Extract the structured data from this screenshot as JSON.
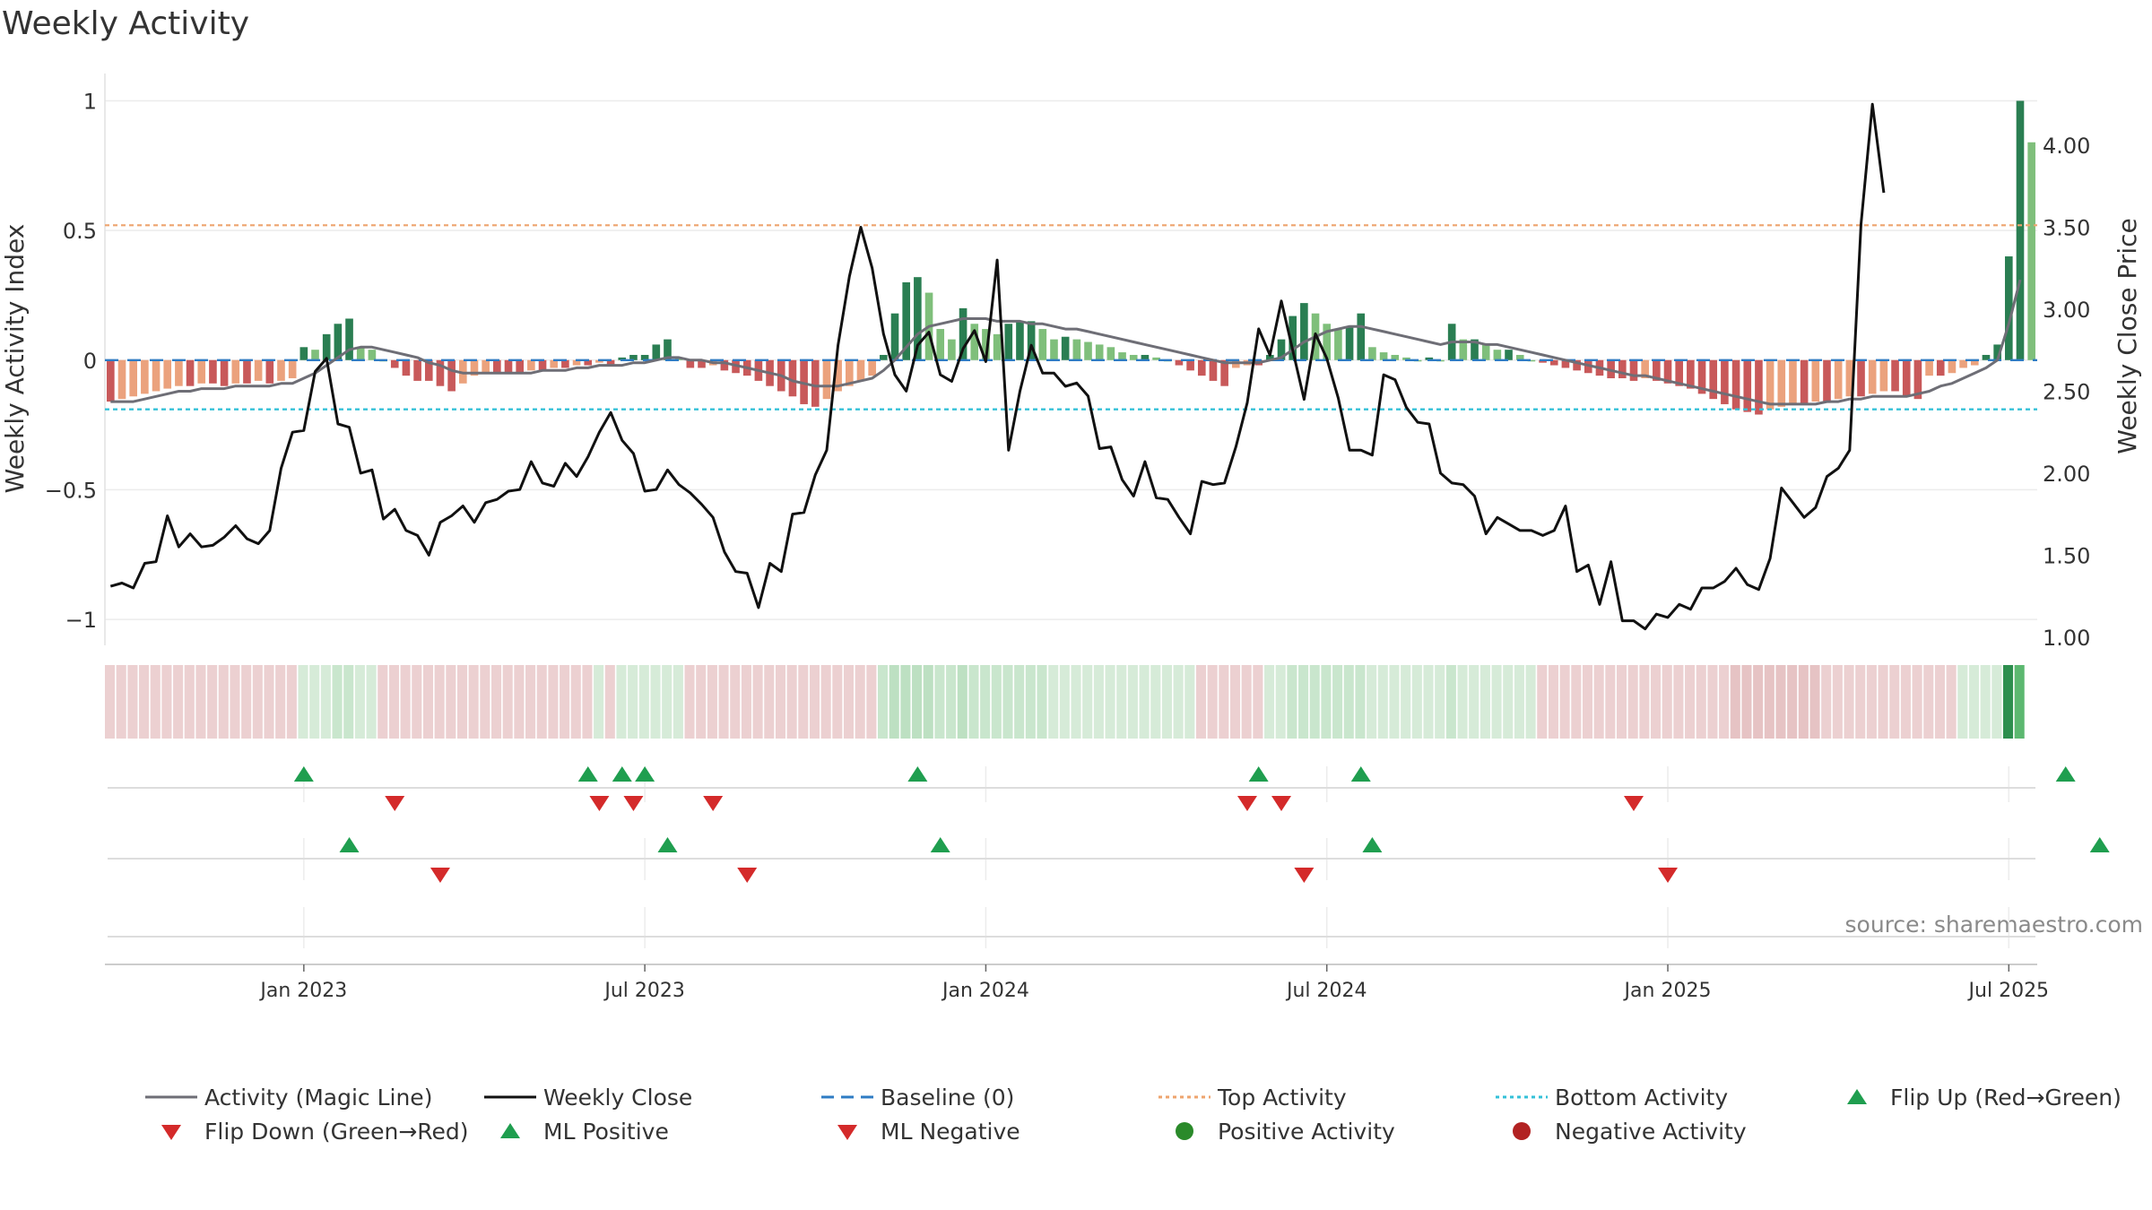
{
  "title": "Weekly Activity",
  "source": "source: sharemaestro.com",
  "colors": {
    "pos_dark": "#2a7e52",
    "pos_light": "#7fbf7b",
    "neg_dark": "#c8595a",
    "neg_light": "#eba27d",
    "magic": "#6e6e76",
    "close": "#111111",
    "baseline": "#2f7cc4",
    "top": "#eea46e",
    "bottom": "#34c1d8",
    "up": "#1f9e4f",
    "down": "#d42a2a",
    "pos_dot": "#2a8a2a",
    "neg_dot": "#b22222"
  },
  "chart_data": {
    "type": "bar",
    "title": "Weekly Activity",
    "ylabel": "Weekly Activity Index",
    "y2label": "Weekly Close Price",
    "ylim": [
      -1.1,
      1.05
    ],
    "y2lim": [
      0.95,
      4.35
    ],
    "yticks": [
      1,
      0.5,
      0,
      -0.5,
      -1
    ],
    "ytick_labels": [
      "1",
      "0.5",
      "0",
      "−0.5",
      "−1"
    ],
    "y2ticks": [
      4.0,
      3.5,
      3.0,
      2.5,
      2.0,
      1.5,
      1.0
    ],
    "y2tick_labels": [
      "4.00",
      "3.50",
      "3.00",
      "2.50",
      "2.00",
      "1.50",
      "1.00"
    ],
    "xticks": [
      17,
      47,
      77,
      107,
      137,
      167
    ],
    "xtick_labels": [
      "Jan 2023",
      "Jul 2023",
      "Jan 2024",
      "Jul 2024",
      "Jan 2025",
      "Jul 2025"
    ],
    "top_activity": 0.52,
    "bottom_activity": -0.19,
    "baseline": 0,
    "activity": [
      -0.16,
      -0.15,
      -0.14,
      -0.13,
      -0.12,
      -0.11,
      -0.1,
      -0.1,
      -0.09,
      -0.09,
      -0.1,
      -0.09,
      -0.09,
      -0.08,
      -0.09,
      -0.08,
      -0.07,
      0.05,
      0.04,
      0.1,
      0.14,
      0.16,
      0.05,
      0.04,
      0,
      -0.03,
      -0.06,
      -0.08,
      -0.08,
      -0.1,
      -0.12,
      -0.09,
      -0.06,
      -0.05,
      -0.05,
      -0.05,
      -0.05,
      -0.04,
      -0.04,
      -0.03,
      -0.03,
      -0.02,
      -0.02,
      -0.01,
      -0.02,
      0.01,
      0.02,
      0.02,
      0.06,
      0.08,
      0.01,
      -0.03,
      -0.03,
      -0.02,
      -0.04,
      -0.05,
      -0.06,
      -0.08,
      -0.1,
      -0.12,
      -0.14,
      -0.17,
      -0.18,
      -0.15,
      -0.12,
      -0.1,
      -0.08,
      -0.06,
      0.02,
      0.18,
      0.3,
      0.32,
      0.26,
      0.12,
      0.08,
      0.2,
      0.14,
      0.12,
      0.1,
      0.14,
      0.15,
      0.15,
      0.12,
      0.08,
      0.09,
      0.08,
      0.07,
      0.06,
      0.05,
      0.03,
      0.02,
      0.02,
      0.01,
      0,
      -0.02,
      -0.04,
      -0.06,
      -0.08,
      -0.1,
      -0.03,
      -0.02,
      -0.02,
      0.02,
      0.08,
      0.17,
      0.22,
      0.18,
      0.14,
      0.12,
      0.13,
      0.18,
      0.05,
      0.03,
      0.02,
      0.01,
      0,
      0.01,
      0,
      0.14,
      0.08,
      0.08,
      0.06,
      0.04,
      0.04,
      0.02,
      0,
      -0.01,
      -0.02,
      -0.03,
      -0.04,
      -0.05,
      -0.06,
      -0.07,
      -0.07,
      -0.08,
      -0.07,
      -0.08,
      -0.09,
      -0.1,
      -0.11,
      -0.13,
      -0.15,
      -0.17,
      -0.19,
      -0.2,
      -0.21,
      -0.19,
      -0.18,
      -0.17,
      -0.17,
      -0.16,
      -0.16,
      -0.15,
      -0.14,
      -0.14,
      -0.13,
      -0.12,
      -0.12,
      -0.14,
      -0.15,
      -0.06,
      -0.06,
      -0.05,
      -0.03,
      -0.02,
      0.02,
      0.06,
      0.4,
      1.0,
      0.84
    ],
    "magic_line": [
      -0.16,
      -0.16,
      -0.16,
      -0.15,
      -0.14,
      -0.13,
      -0.12,
      -0.12,
      -0.11,
      -0.11,
      -0.11,
      -0.1,
      -0.1,
      -0.1,
      -0.1,
      -0.09,
      -0.09,
      -0.07,
      -0.05,
      -0.02,
      0.01,
      0.04,
      0.05,
      0.05,
      0.04,
      0.03,
      0.02,
      0.01,
      -0.01,
      -0.02,
      -0.04,
      -0.05,
      -0.05,
      -0.05,
      -0.05,
      -0.05,
      -0.05,
      -0.05,
      -0.04,
      -0.04,
      -0.04,
      -0.03,
      -0.03,
      -0.02,
      -0.02,
      -0.02,
      -0.01,
      -0.01,
      0,
      0.01,
      0.01,
      0,
      0,
      -0.01,
      -0.01,
      -0.02,
      -0.03,
      -0.04,
      -0.05,
      -0.06,
      -0.08,
      -0.09,
      -0.1,
      -0.1,
      -0.1,
      -0.09,
      -0.08,
      -0.07,
      -0.04,
      0,
      0.05,
      0.1,
      0.13,
      0.14,
      0.15,
      0.16,
      0.16,
      0.16,
      0.15,
      0.15,
      0.15,
      0.14,
      0.14,
      0.13,
      0.12,
      0.12,
      0.11,
      0.1,
      0.09,
      0.08,
      0.07,
      0.06,
      0.05,
      0.04,
      0.03,
      0.02,
      0.01,
      0,
      -0.01,
      -0.01,
      -0.01,
      -0.01,
      0,
      0.01,
      0.04,
      0.07,
      0.09,
      0.11,
      0.12,
      0.13,
      0.13,
      0.12,
      0.11,
      0.1,
      0.09,
      0.08,
      0.07,
      0.06,
      0.07,
      0.07,
      0.07,
      0.06,
      0.06,
      0.05,
      0.04,
      0.03,
      0.02,
      0.01,
      0,
      -0.01,
      -0.02,
      -0.03,
      -0.04,
      -0.05,
      -0.06,
      -0.06,
      -0.07,
      -0.08,
      -0.09,
      -0.1,
      -0.11,
      -0.12,
      -0.13,
      -0.14,
      -0.15,
      -0.16,
      -0.17,
      -0.17,
      -0.17,
      -0.17,
      -0.17,
      -0.16,
      -0.16,
      -0.15,
      -0.15,
      -0.14,
      -0.14,
      -0.14,
      -0.14,
      -0.13,
      -0.12,
      -0.1,
      -0.09,
      -0.07,
      -0.05,
      -0.03,
      0,
      0.14,
      0.31
    ],
    "weekly_close": [
      1.31,
      1.33,
      1.3,
      1.45,
      1.46,
      1.74,
      1.55,
      1.63,
      1.55,
      1.56,
      1.61,
      1.68,
      1.6,
      1.57,
      1.65,
      2.03,
      2.25,
      2.26,
      2.62,
      2.7,
      2.3,
      2.28,
      2.0,
      2.02,
      1.72,
      1.78,
      1.65,
      1.62,
      1.5,
      1.7,
      1.74,
      1.8,
      1.7,
      1.82,
      1.84,
      1.89,
      1.9,
      2.07,
      1.94,
      1.92,
      2.06,
      1.98,
      2.1,
      2.25,
      2.37,
      2.2,
      2.12,
      1.89,
      1.9,
      2.02,
      1.93,
      1.88,
      1.81,
      1.73,
      1.52,
      1.4,
      1.39,
      1.18,
      1.45,
      1.4,
      1.75,
      1.76,
      1.99,
      2.14,
      2.78,
      3.2,
      3.5,
      3.25,
      2.85,
      2.6,
      2.5,
      2.78,
      2.86,
      2.6,
      2.56,
      2.76,
      2.87,
      2.68,
      3.3,
      2.14,
      2.5,
      2.78,
      2.61,
      2.61,
      2.53,
      2.55,
      2.47,
      2.15,
      2.16,
      1.96,
      1.86,
      2.07,
      1.85,
      1.84,
      1.73,
      1.63,
      1.95,
      1.93,
      1.94,
      2.16,
      2.43,
      2.88,
      2.72,
      3.05,
      2.75,
      2.45,
      2.85,
      2.7,
      2.46,
      2.14,
      2.14,
      2.11,
      2.6,
      2.57,
      2.4,
      2.31,
      2.3,
      2.0,
      1.94,
      1.93,
      1.86,
      1.63,
      1.73,
      1.69,
      1.65,
      1.65,
      1.62,
      1.65,
      1.8,
      1.4,
      1.44,
      1.2,
      1.46,
      1.1,
      1.1,
      1.05,
      1.14,
      1.12,
      1.2,
      1.17,
      1.3,
      1.3,
      1.34,
      1.42,
      1.32,
      1.29,
      1.48,
      1.91,
      1.82,
      1.73,
      1.79,
      1.98,
      2.03,
      2.14,
      3.52,
      4.25,
      3.71
    ],
    "shading_colors": [
      "#ecd0d1",
      "#ecd0d1",
      "#ecd0d1",
      "#ecd0d1",
      "#ecd0d1",
      "#ecd0d1",
      "#ecd0d1",
      "#ecd0d1",
      "#ecd0d1",
      "#ecd0d1",
      "#ecd0d1",
      "#ecd0d1",
      "#ecd0d1",
      "#ecd0d1",
      "#ecd0d1",
      "#ecd0d1",
      "#ecd0d1",
      "#d6ebd8",
      "#d6ebd8",
      "#d6ebd8",
      "#c9e6cd",
      "#c9e6cd",
      "#d6ebd8",
      "#d6ebd8",
      "#ecd0d1",
      "#ecd0d1",
      "#ecd0d1",
      "#ecd0d1",
      "#ecd0d1",
      "#ecd0d1",
      "#ecd0d1",
      "#ecd0d1",
      "#ecd0d1",
      "#ecd0d1",
      "#ecd0d1",
      "#ecd0d1",
      "#ecd0d1",
      "#ecd0d1",
      "#ecd0d1",
      "#ecd0d1",
      "#ecd0d1",
      "#ecd0d1",
      "#ecd0d1",
      "#d6ebd8",
      "#ecd0d1",
      "#d6ebd8",
      "#d6ebd8",
      "#d6ebd8",
      "#d6ebd8",
      "#d6ebd8",
      "#d6ebd8",
      "#ecd0d1",
      "#ecd0d1",
      "#ecd0d1",
      "#ecd0d1",
      "#ecd0d1",
      "#ecd0d1",
      "#ecd0d1",
      "#ecd0d1",
      "#ecd0d1",
      "#ecd0d1",
      "#ecd0d1",
      "#ecd0d1",
      "#ecd0d1",
      "#ecd0d1",
      "#ecd0d1",
      "#ecd0d1",
      "#ecd0d1",
      "#c9e6cd",
      "#bde0c2",
      "#bde0c2",
      "#bde0c2",
      "#bde0c2",
      "#c9e6cd",
      "#c9e6cd",
      "#bde0c2",
      "#c9e6cd",
      "#c9e6cd",
      "#c9e6cd",
      "#c9e6cd",
      "#c9e6cd",
      "#c9e6cd",
      "#c9e6cd",
      "#d6ebd8",
      "#d6ebd8",
      "#d6ebd8",
      "#d6ebd8",
      "#d6ebd8",
      "#d6ebd8",
      "#d6ebd8",
      "#d6ebd8",
      "#d6ebd8",
      "#d6ebd8",
      "#d6ebd8",
      "#d6ebd8",
      "#d6ebd8",
      "#ecd0d1",
      "#ecd0d1",
      "#ecd0d1",
      "#ecd0d1",
      "#ecd0d1",
      "#ecd0d1",
      "#d6ebd8",
      "#d6ebd8",
      "#c9e6cd",
      "#c9e6cd",
      "#c9e6cd",
      "#c9e6cd",
      "#c9e6cd",
      "#c9e6cd",
      "#c9e6cd",
      "#d6ebd8",
      "#d6ebd8",
      "#d6ebd8",
      "#d6ebd8",
      "#d6ebd8",
      "#d6ebd8",
      "#d6ebd8",
      "#c9e6cd",
      "#d6ebd8",
      "#d6ebd8",
      "#d6ebd8",
      "#d6ebd8",
      "#d6ebd8",
      "#d6ebd8",
      "#d6ebd8",
      "#ecd0d1",
      "#ecd0d1",
      "#ecd0d1",
      "#ecd0d1",
      "#ecd0d1",
      "#ecd0d1",
      "#ecd0d1",
      "#ecd0d1",
      "#ecd0d1",
      "#ecd0d1",
      "#ecd0d1",
      "#ecd0d1",
      "#ecd0d1",
      "#ecd0d1",
      "#ecd0d1",
      "#ecd0d1",
      "#ecd0d1",
      "#e6c3c4",
      "#e6c3c4",
      "#e6c3c4",
      "#e6c3c4",
      "#e6c3c4",
      "#e6c3c4",
      "#e6c3c4",
      "#e6c3c4",
      "#ecd0d1",
      "#ecd0d1",
      "#ecd0d1",
      "#ecd0d1",
      "#ecd0d1",
      "#ecd0d1",
      "#ecd0d1",
      "#ecd0d1",
      "#ecd0d1",
      "#ecd0d1",
      "#ecd0d1",
      "#ecd0d1",
      "#d6ebd8",
      "#d6ebd8",
      "#d6ebd8",
      "#d6ebd8",
      "#2d8f4e",
      "#5cb870"
    ],
    "flip_up": [
      17,
      42,
      45,
      47,
      71,
      101,
      110,
      172
    ],
    "flip_down": [
      25,
      43,
      46,
      53,
      100,
      103,
      134
    ],
    "ml_positive": [
      21,
      49,
      73,
      111,
      175
    ],
    "ml_negative": [
      29,
      56,
      105,
      137
    ]
  },
  "legend": {
    "magic": "Activity (Magic Line)",
    "close": "Weekly Close",
    "baseline": "Baseline (0)",
    "top": "Top Activity",
    "bottom": "Bottom Activity",
    "flip_up": "Flip Up (Red→Green)",
    "flip_down": "Flip Down (Green→Red)",
    "ml_pos": "ML Positive",
    "ml_neg": "ML Negative",
    "pos_act": "Positive Activity",
    "neg_act": "Negative Activity"
  }
}
